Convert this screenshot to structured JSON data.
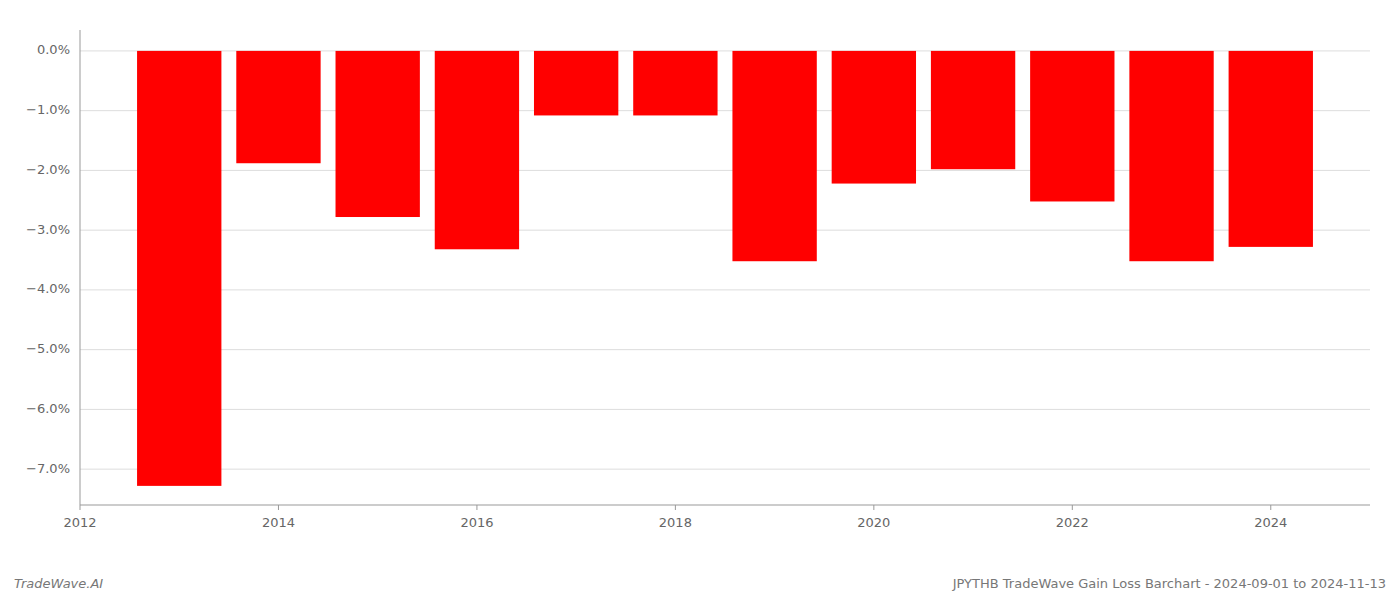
{
  "chart_data": {
    "type": "bar",
    "title": "JPYTHB TradeWave Gain Loss Barchart - 2024-09-01 to 2024-11-13",
    "subtitle": "TradeWave.AI",
    "x": [
      2013,
      2014,
      2015,
      2016,
      2017,
      2018,
      2019,
      2020,
      2021,
      2022,
      2023,
      2024
    ],
    "values": [
      -7.28,
      -1.88,
      -2.78,
      -3.32,
      -1.08,
      -1.08,
      -3.52,
      -2.22,
      -1.98,
      -2.52,
      -3.52,
      -3.28
    ],
    "color": "#ff0000",
    "xlim": [
      2012,
      2025
    ],
    "xticks": [
      2012,
      2014,
      2016,
      2018,
      2020,
      2022,
      2024
    ],
    "ylim": [
      -7.6,
      0.35
    ],
    "yticks": [
      {
        "value": 0.0,
        "label": "0.0%"
      },
      {
        "value": -1.0,
        "label": "−1.0%"
      },
      {
        "value": -2.0,
        "label": "−2.0%"
      },
      {
        "value": -3.0,
        "label": "−3.0%"
      },
      {
        "value": -4.0,
        "label": "−4.0%"
      },
      {
        "value": -5.0,
        "label": "−5.0%"
      },
      {
        "value": -6.0,
        "label": "−6.0%"
      },
      {
        "value": -7.0,
        "label": "−7.0%"
      }
    ],
    "grid": true
  }
}
